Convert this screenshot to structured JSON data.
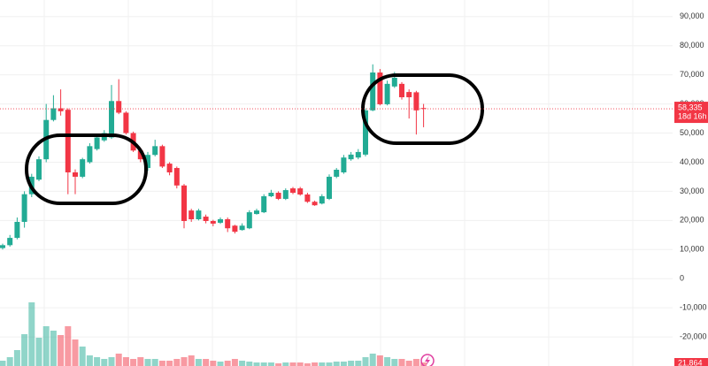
{
  "chart_data": {
    "type": "candlestick",
    "open": [
      10500,
      11500,
      14000,
      19500,
      29000,
      34000,
      41000,
      54500,
      58500,
      58000,
      36500,
      35000,
      40000,
      44500,
      47500,
      48500,
      61000,
      57000,
      50000,
      44000,
      38000,
      42500,
      45500,
      39500,
      38000,
      32000,
      23400,
      20400,
      21300,
      19800,
      19200,
      20400,
      18200,
      16700,
      17300,
      22200,
      22800,
      28300,
      29500,
      27400,
      31000,
      31000,
      28900,
      26400,
      25800,
      27400,
      35000,
      36500,
      41000,
      41600,
      42600,
      57800,
      70800,
      59900,
      66000,
      66900,
      64100,
      64000,
      58600
    ],
    "high": [
      12000,
      15000,
      21000,
      30000,
      36000,
      42000,
      60000,
      63000,
      65000,
      58500,
      37500,
      41500,
      46500,
      49500,
      51000,
      66500,
      68500,
      57500,
      50500,
      45000,
      43500,
      47700,
      46000,
      40000,
      38500,
      32500,
      24000,
      24000,
      22000,
      20200,
      21000,
      21000,
      18500,
      19000,
      23500,
      24000,
      29000,
      30500,
      30000,
      31000,
      31500,
      31500,
      29500,
      26800,
      29000,
      35800,
      38000,
      42500,
      43500,
      44500,
      58500,
      73600,
      72000,
      68000,
      71000,
      67500,
      65000,
      64500,
      60000
    ],
    "low": [
      10000,
      11000,
      13500,
      17500,
      28000,
      33500,
      40000,
      54000,
      56000,
      29000,
      29000,
      34500,
      39500,
      44000,
      47000,
      48000,
      56500,
      49500,
      43500,
      40000,
      37000,
      42000,
      38000,
      35500,
      31000,
      17300,
      19500,
      20000,
      19000,
      18000,
      18800,
      16000,
      15500,
      16500,
      17000,
      22000,
      22500,
      28000,
      27000,
      27000,
      29000,
      28500,
      26000,
      25000,
      25500,
      27000,
      34500,
      36000,
      40500,
      41000,
      42000,
      57500,
      59500,
      59500,
      65500,
      61500,
      55000,
      49500,
      52000
    ],
    "close": [
      11500,
      14000,
      19500,
      29000,
      35000,
      41000,
      54500,
      58500,
      57500,
      36500,
      35000,
      41000,
      45500,
      48500,
      50000,
      61000,
      57000,
      50000,
      44000,
      41000,
      42500,
      45500,
      38500,
      36500,
      32000,
      19800,
      20400,
      23400,
      19800,
      18900,
      20400,
      17300,
      16100,
      18200,
      22800,
      23400,
      28300,
      29500,
      27400,
      30400,
      29500,
      28900,
      26400,
      25200,
      28300,
      35000,
      37400,
      41600,
      42600,
      43500,
      57800,
      70800,
      59900,
      66900,
      69000,
      62300,
      62300,
      57800,
      58335
    ],
    "volume": [
      6,
      10,
      18,
      36,
      72,
      32,
      45,
      40,
      35,
      45,
      30,
      22,
      12,
      10,
      8,
      10,
      14,
      10,
      8,
      10,
      8,
      8,
      6,
      6,
      8,
      10,
      12,
      8,
      8,
      6,
      5,
      6,
      8,
      6,
      5,
      4,
      4,
      4,
      3,
      4,
      4,
      4,
      3,
      4,
      4,
      4,
      5,
      5,
      6,
      6,
      10,
      14,
      12,
      10,
      8,
      8,
      6,
      8,
      4
    ],
    "up_color": "#22ab94",
    "down_color": "#f23645",
    "ylim": [
      -30000,
      95700
    ],
    "yticks": [
      {
        "value": 90000,
        "label": "90,000"
      },
      {
        "value": 80000,
        "label": "80,000"
      },
      {
        "value": 70000,
        "label": "70,000"
      },
      {
        "value": 60000,
        "label": "60,000"
      },
      {
        "value": 50000,
        "label": "50,000"
      },
      {
        "value": 40000,
        "label": "40,000"
      },
      {
        "value": 30000,
        "label": "30,000"
      },
      {
        "value": 20000,
        "label": "20,000"
      },
      {
        "value": 10000,
        "label": "10,000"
      },
      0,
      {
        "value": -10000,
        "label": "-10,000"
      },
      {
        "value": -20000,
        "label": "-20,000"
      }
    ],
    "grid": true,
    "last_price": {
      "value": 58335,
      "label": "58,335"
    },
    "countdown": "18d 16h",
    "volume_label": "21,864"
  }
}
